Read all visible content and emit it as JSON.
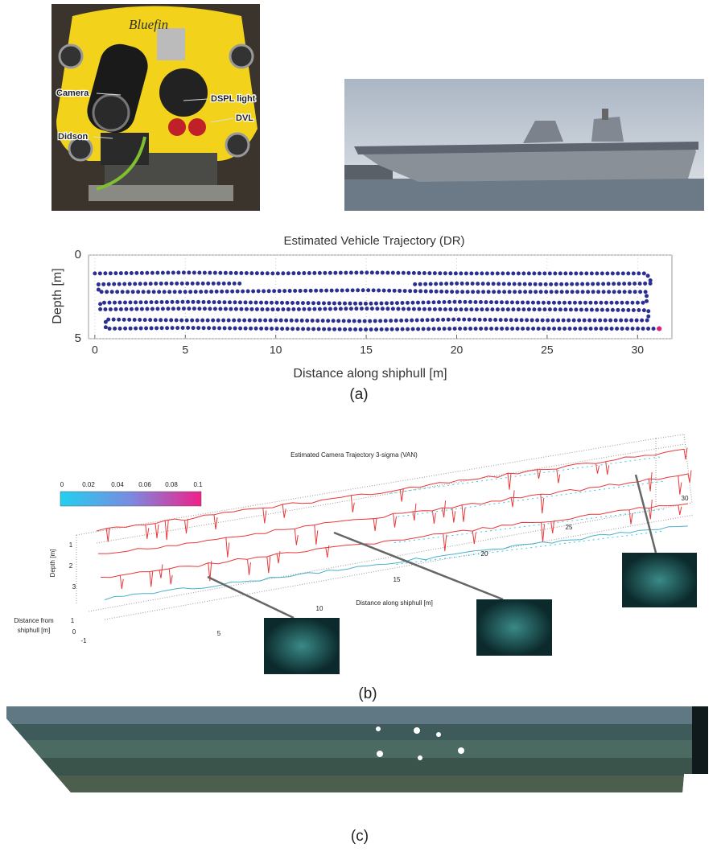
{
  "photos": {
    "vehicle": {
      "brand": "Bluefin",
      "labels": [
        "Camera",
        "DSPL light",
        "Didson",
        "DVL"
      ]
    }
  },
  "chart_data": {
    "type": "line",
    "title": "Estimated Vehicle Trajectory (DR)",
    "x_label": "Distance along shiphull [m]",
    "y_label": "Depth [m]",
    "xlim": [
      -0.35,
      31.9
    ],
    "ylim": [
      0,
      5
    ],
    "y_inverted": true,
    "xticks": [
      0,
      5,
      10,
      15,
      20,
      25,
      30
    ],
    "yticks": [
      0,
      5
    ],
    "grid": true,
    "series": [
      {
        "color": "#2b2f8f",
        "end_color": "#e0207f",
        "x": [
          0,
          5,
          10,
          15,
          20,
          25,
          30.5,
          30.8,
          25,
          20,
          17.5,
          12,
          8,
          4,
          0.2,
          0.2,
          5,
          10,
          15,
          20,
          25,
          30.5,
          30.5,
          25,
          20,
          15,
          10,
          5,
          0.3,
          0.3,
          5,
          10,
          15,
          20,
          25,
          30.6,
          30.6,
          25,
          20,
          15,
          10,
          5,
          0.6,
          0.6,
          5,
          10,
          15,
          20,
          25,
          31.2
        ],
        "y": [
          1.1,
          1.05,
          1.1,
          1.05,
          1.1,
          1.1,
          1.1,
          1.7,
          1.75,
          1.7,
          1.75,
          null,
          1.7,
          1.7,
          1.75,
          2.2,
          2.2,
          2.15,
          2.1,
          2.2,
          2.2,
          2.2,
          2.85,
          2.85,
          2.8,
          2.9,
          2.85,
          2.8,
          2.85,
          3.25,
          3.2,
          3.25,
          3.2,
          3.25,
          3.25,
          3.3,
          3.9,
          3.9,
          3.85,
          3.95,
          3.9,
          3.9,
          3.85,
          4.4,
          4.35,
          4.4,
          4.45,
          4.4,
          4.4,
          4.4
        ]
      }
    ],
    "caption": "(a)"
  },
  "figure_b": {
    "title": "Estimated Camera Trajectory 3-sigma (VAN)",
    "colorbar_ticks": [
      0,
      0.02,
      0.04,
      0.06,
      0.08,
      0.1
    ],
    "depth_label": "Depth [m]",
    "depth_ticks": [
      1,
      2,
      3
    ],
    "along_label": "Distance along shiphull [m]",
    "along_ticks": [
      5,
      10,
      15,
      20,
      25,
      30
    ],
    "from_label": "Distance from shiphull [m]",
    "from_ticks": [
      1,
      0,
      -1
    ],
    "caption": "(b)"
  },
  "figure_c": {
    "caption": "(c)"
  }
}
